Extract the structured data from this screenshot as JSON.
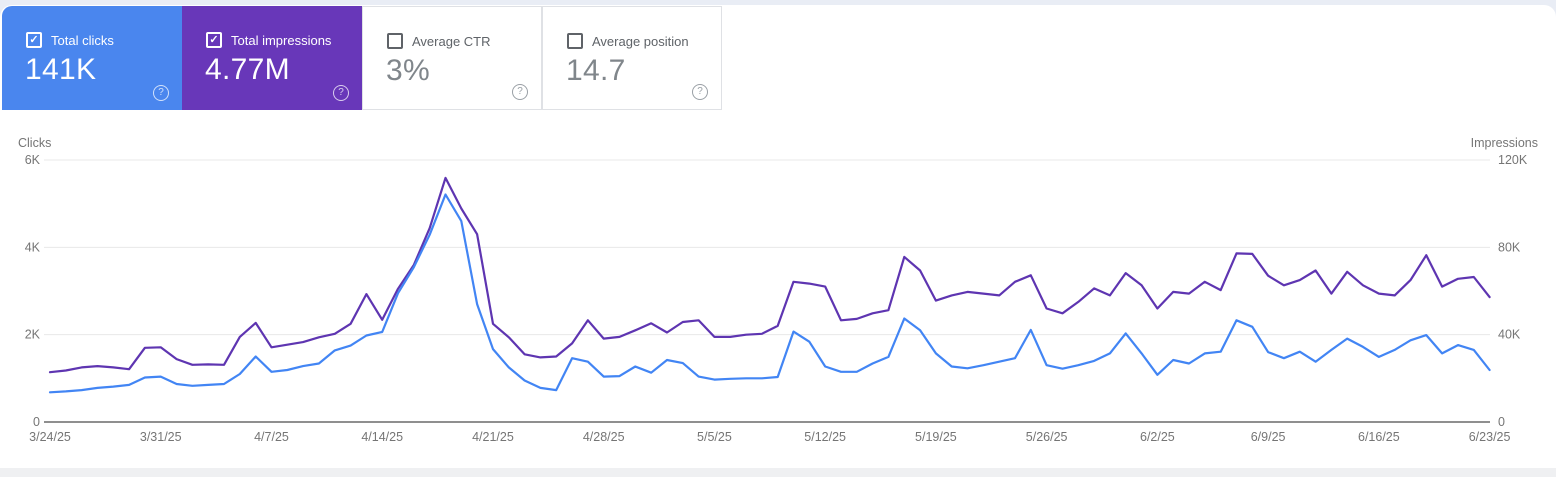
{
  "metric_tiles": [
    {
      "id": "total-clicks",
      "label": "Total clicks",
      "value": "141K",
      "checked": true,
      "bg": "#4a86ee"
    },
    {
      "id": "total-impressions",
      "label": "Total impressions",
      "value": "4.77M",
      "checked": true,
      "bg": "#6837b9"
    },
    {
      "id": "average-ctr",
      "label": "Average CTR",
      "value": "3%",
      "checked": false,
      "bg": "#ffffff"
    },
    {
      "id": "average-position",
      "label": "Average position",
      "value": "14.7",
      "checked": false,
      "bg": "#ffffff"
    }
  ],
  "help_glyph": "?",
  "check_glyph": "✓",
  "chart_data": {
    "type": "line",
    "grid": true,
    "legend_position": "none",
    "left_axis": {
      "title": "Clicks",
      "tick_labels": [
        "0",
        "2K",
        "4K",
        "6K"
      ],
      "min": 0,
      "max": 6000
    },
    "right_axis": {
      "title": "Impressions",
      "tick_labels": [
        "0",
        "40K",
        "80K",
        "120K"
      ],
      "min": 0,
      "max": 120000
    },
    "x_tick_labels": [
      "3/24/25",
      "3/31/25",
      "4/7/25",
      "4/14/25",
      "4/21/25",
      "4/28/25",
      "5/5/25",
      "5/12/25",
      "5/19/25",
      "5/26/25",
      "6/2/25",
      "6/9/25",
      "6/16/25",
      "6/23/25"
    ],
    "dates": [
      "3/24/25",
      "3/25/25",
      "3/26/25",
      "3/27/25",
      "3/28/25",
      "3/29/25",
      "3/30/25",
      "3/31/25",
      "4/1/25",
      "4/2/25",
      "4/3/25",
      "4/4/25",
      "4/5/25",
      "4/6/25",
      "4/7/25",
      "4/8/25",
      "4/9/25",
      "4/10/25",
      "4/11/25",
      "4/12/25",
      "4/13/25",
      "4/14/25",
      "4/15/25",
      "4/16/25",
      "4/17/25",
      "4/18/25",
      "4/19/25",
      "4/20/25",
      "4/21/25",
      "4/22/25",
      "4/23/25",
      "4/24/25",
      "4/25/25",
      "4/26/25",
      "4/27/25",
      "4/28/25",
      "4/29/25",
      "4/30/25",
      "5/1/25",
      "5/2/25",
      "5/3/25",
      "5/4/25",
      "5/5/25",
      "5/6/25",
      "5/7/25",
      "5/8/25",
      "5/9/25",
      "5/10/25",
      "5/11/25",
      "5/12/25",
      "5/13/25",
      "5/14/25",
      "5/15/25",
      "5/16/25",
      "5/17/25",
      "5/18/25",
      "5/19/25",
      "5/20/25",
      "5/21/25",
      "5/22/25",
      "5/23/25",
      "5/24/25",
      "5/25/25",
      "5/26/25",
      "5/27/25",
      "5/28/25",
      "5/29/25",
      "5/30/25",
      "5/31/25",
      "6/1/25",
      "6/2/25",
      "6/3/25",
      "6/4/25",
      "6/5/25",
      "6/6/25",
      "6/7/25",
      "6/8/25",
      "6/9/25",
      "6/10/25",
      "6/11/25",
      "6/12/25",
      "6/13/25",
      "6/14/25",
      "6/15/25",
      "6/16/25",
      "6/17/25",
      "6/18/25",
      "6/19/25",
      "6/20/25",
      "6/21/25",
      "6/22/25",
      "6/23/25"
    ],
    "series": [
      {
        "name": "Impressions",
        "axis": "right",
        "color": "#5e35b1",
        "values": [
          22800,
          23600,
          25000,
          25600,
          25000,
          24200,
          34000,
          34200,
          28800,
          26200,
          26400,
          26200,
          39000,
          45400,
          34200,
          35400,
          36600,
          38800,
          40400,
          45000,
          58600,
          46800,
          61000,
          72000,
          88800,
          111800,
          97800,
          86000,
          45000,
          38800,
          31000,
          29600,
          30000,
          36000,
          46600,
          38200,
          39000,
          42000,
          45200,
          41000,
          45800,
          46600,
          39000,
          39000,
          40000,
          40400,
          44000,
          64200,
          63400,
          62000,
          46600,
          47200,
          49800,
          51200,
          75600,
          69400,
          55600,
          58000,
          59600,
          58800,
          58000,
          64200,
          67200,
          52000,
          49800,
          55000,
          61200,
          58000,
          68200,
          62600,
          52000,
          59600,
          58800,
          64200,
          60400,
          77200,
          77000,
          67000,
          62600,
          65000,
          69400,
          58800,
          68800,
          62600,
          58800,
          58000,
          65000,
          76400,
          62000,
          65600,
          66400,
          57200
        ]
      },
      {
        "name": "Clicks",
        "axis": "left",
        "color": "#4285f4",
        "values": [
          680,
          700,
          730,
          780,
          810,
          850,
          1020,
          1040,
          870,
          830,
          850,
          870,
          1100,
          1500,
          1150,
          1190,
          1280,
          1340,
          1640,
          1750,
          1980,
          2060,
          2950,
          3550,
          4290,
          5210,
          4600,
          2700,
          1670,
          1250,
          950,
          780,
          730,
          1460,
          1380,
          1040,
          1050,
          1270,
          1130,
          1420,
          1350,
          1040,
          970,
          990,
          1000,
          1000,
          1030,
          2070,
          1840,
          1270,
          1150,
          1150,
          1340,
          1490,
          2370,
          2100,
          1570,
          1270,
          1230,
          1300,
          1380,
          1460,
          2110,
          1300,
          1220,
          1300,
          1400,
          1570,
          2030,
          1570,
          1080,
          1420,
          1340,
          1570,
          1610,
          2330,
          2180,
          1600,
          1460,
          1610,
          1380,
          1650,
          1910,
          1720,
          1490,
          1650,
          1870,
          1990,
          1570,
          1760,
          1650,
          1190
        ]
      }
    ]
  }
}
